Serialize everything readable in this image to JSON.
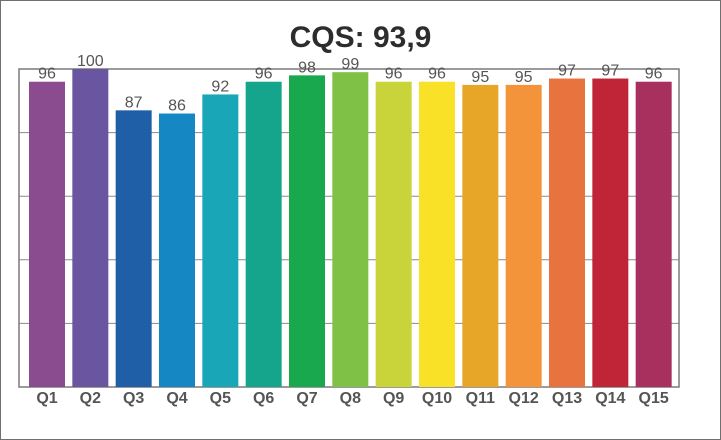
{
  "chart_data": {
    "type": "bar",
    "title": "CQS: 93,9",
    "xlabel": "",
    "ylabel": "",
    "categories": [
      "Q1",
      "Q2",
      "Q3",
      "Q4",
      "Q5",
      "Q6",
      "Q7",
      "Q8",
      "Q9",
      "Q10",
      "Q11",
      "Q12",
      "Q13",
      "Q14",
      "Q15"
    ],
    "values": [
      96,
      100,
      87,
      86,
      92,
      96,
      98,
      99,
      96,
      96,
      95,
      95,
      97,
      97,
      96
    ],
    "ylim": [
      0,
      100
    ],
    "grid": true,
    "legend": "none",
    "colors": [
      "#8a4b8f",
      "#6a55a0",
      "#1f5fa8",
      "#1587c2",
      "#19a7b7",
      "#14a58c",
      "#1aa84f",
      "#7fc146",
      "#c8d43a",
      "#f9e128",
      "#e8a628",
      "#f4943a",
      "#e8733f",
      "#bf2537",
      "#a8305f"
    ]
  }
}
